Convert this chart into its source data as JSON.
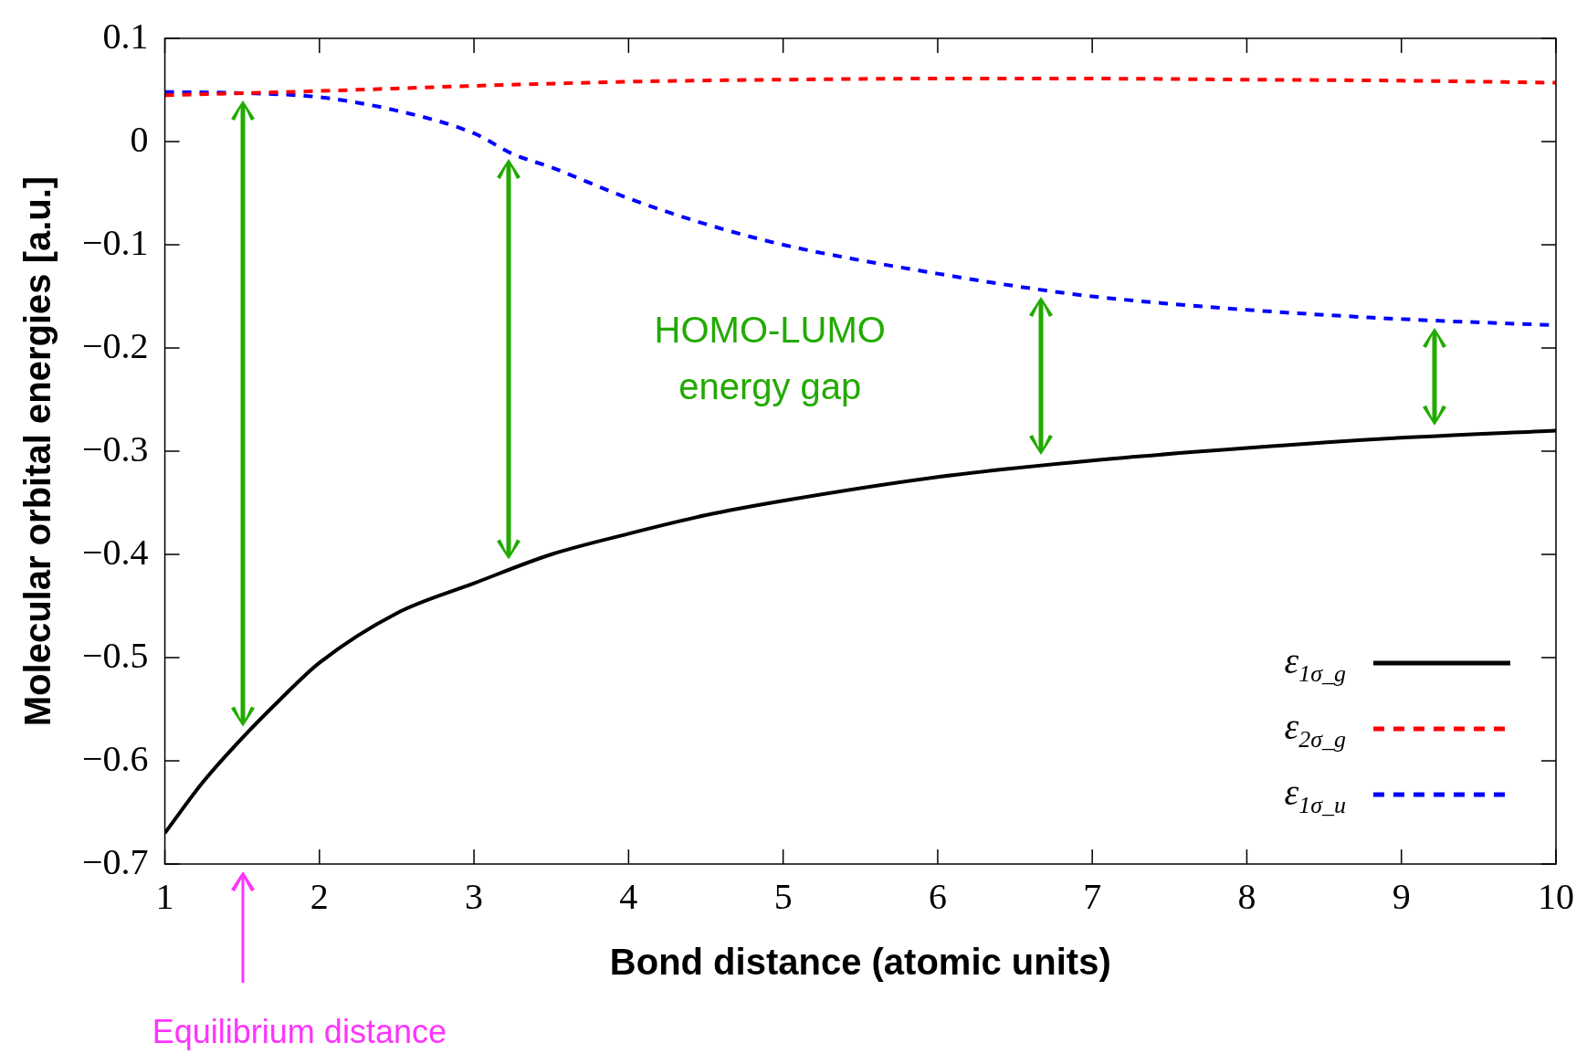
{
  "chart_data": {
    "type": "line",
    "xlabel": "Bond distance (atomic units)",
    "ylabel": "Molecular orbital energies [a.u.]",
    "xlim": [
      1,
      10
    ],
    "xticks": [
      1,
      2,
      3,
      4,
      5,
      6,
      7,
      8,
      9,
      10
    ],
    "ylim": [
      -0.7,
      0.1
    ],
    "yticks": [
      {
        "value": -0.7,
        "label": "−0.7"
      },
      {
        "value": -0.6,
        "label": "−0.6"
      },
      {
        "value": -0.5,
        "label": "−0.5"
      },
      {
        "value": -0.4,
        "label": "−0.4"
      },
      {
        "value": -0.3,
        "label": "−0.3"
      },
      {
        "value": -0.2,
        "label": "−0.2"
      },
      {
        "value": -0.1,
        "label": "−0.1"
      },
      {
        "value": 0,
        "label": "0"
      },
      {
        "value": 0.1,
        "label": "0.1"
      }
    ],
    "grid": false,
    "legend": "bottom right",
    "marker": "none",
    "line_style": "solid",
    "series": [
      {
        "name": "ε$_{1σ_g}$",
        "color": "#000000",
        "x": [
          1,
          1.25,
          1.5,
          1.75,
          2,
          2.5,
          3,
          3.5,
          4,
          4.5,
          5,
          6,
          7,
          8,
          9,
          10
        ],
        "values": [
          -0.67,
          -0.62,
          -0.578,
          -0.54,
          -0.505,
          -0.457,
          -0.428,
          -0.4,
          -0.38,
          -0.362,
          -0.348,
          -0.325,
          -0.309,
          -0.297,
          -0.287,
          -0.28
        ]
      },
      {
        "name": "ε$_{2σ_g}$",
        "color": "#ff0000",
        "line_style": "dashed",
        "x": [
          1,
          2,
          3,
          4,
          5,
          6,
          7,
          8,
          9,
          10
        ],
        "values": [
          0.045,
          0.049,
          0.054,
          0.058,
          0.06,
          0.061,
          0.061,
          0.06,
          0.059,
          0.057
        ]
      },
      {
        "name": "ε$_{1σ_u}$",
        "color": "#0000ff",
        "line_style": "dashed",
        "x": [
          1,
          1.5,
          2,
          2.5,
          3,
          3.25,
          3.5,
          4,
          4.5,
          5,
          5.5,
          6,
          6.5,
          7,
          8,
          9,
          10
        ],
        "values": [
          0.048,
          0.047,
          0.043,
          0.03,
          0.008,
          -0.012,
          -0.025,
          -0.055,
          -0.08,
          -0.1,
          -0.115,
          -0.128,
          -0.14,
          -0.15,
          -0.163,
          -0.172,
          -0.178
        ]
      }
    ],
    "annotations": [
      "HOMO-LUMO energy gap",
      "Equilibrium distance"
    ]
  }
}
